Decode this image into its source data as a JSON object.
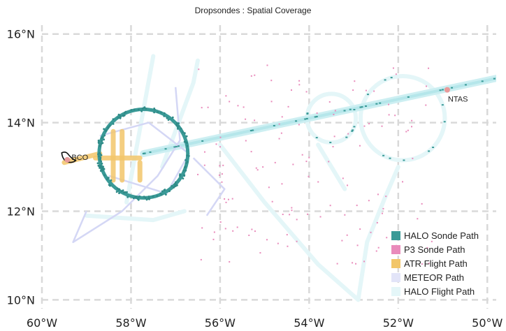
{
  "chart_data": {
    "type": "scatter",
    "title": "Dropsondes : Spatial Coverage",
    "xlim": [
      -60.0,
      -49.8
    ],
    "ylim": [
      9.8,
      16.2
    ],
    "x_ticks": [
      -60,
      -58,
      -56,
      -54,
      -52,
      -50
    ],
    "x_tick_labels": [
      "60°W",
      "58°W",
      "56°W",
      "54°W",
      "52°W",
      "50°W"
    ],
    "y_ticks": [
      10,
      12,
      14,
      16
    ],
    "y_tick_labels": [
      "10°N",
      "12°N",
      "14°N",
      "16°N"
    ],
    "grid": true,
    "legend_placement": "bottom-right",
    "sites": [
      {
        "name": "BCO",
        "lon": -59.43,
        "lat": 13.16,
        "color": "#e89a9a"
      },
      {
        "name": "NTAS",
        "lon": -50.9,
        "lat": 14.74,
        "color": "#e89a9a"
      }
    ],
    "series": [
      {
        "name": "HALO Sonde Path",
        "color": "#3a9a97"
      },
      {
        "name": "P3 Sonde Path",
        "color": "#e98bbb"
      },
      {
        "name": "ATR Flight Path",
        "color": "#f2c66a"
      },
      {
        "name": "METEOR Path",
        "color": "#e2e4f8"
      },
      {
        "name": "HALO Flight Path",
        "color": "#e4f6f8"
      }
    ],
    "halo_circle": {
      "center_lon": -57.72,
      "center_lat": 13.3,
      "radius_deg_lat": 1.0
    },
    "east_circles": [
      {
        "center_lon": -51.9,
        "center_lat": 14.1,
        "radius_deg_lat": 0.95
      },
      {
        "center_lon": -53.5,
        "center_lat": 14.1,
        "radius_deg_lat": 0.55
      }
    ],
    "halo_track": [
      [
        -57.72,
        13.3
      ],
      [
        -49.8,
        15.0
      ]
    ],
    "atr_tracks": [
      [
        [
          -58.4,
          13.8
        ],
        [
          -58.4,
          12.7
        ]
      ],
      [
        [
          -58.2,
          13.8
        ],
        [
          -58.2,
          12.7
        ]
      ],
      [
        [
          -58.8,
          13.2
        ],
        [
          -57.8,
          13.2
        ]
      ],
      [
        [
          -59.5,
          13.1
        ],
        [
          -58.7,
          13.3
        ]
      ],
      [
        [
          -57.8,
          13.1
        ],
        [
          -57.8,
          12.7
        ]
      ]
    ],
    "halo_flight_tracks": [
      [
        [
          -57.5,
          15.5
        ],
        [
          -57.9,
          13.3
        ],
        [
          -58.1,
          12.2
        ]
      ],
      [
        [
          -56.5,
          15.4
        ],
        [
          -56.6,
          14.9
        ],
        [
          -57.3,
          13.0
        ]
      ],
      [
        [
          -56.0,
          13.5
        ],
        [
          -55.0,
          12.2
        ],
        [
          -53.8,
          10.8
        ],
        [
          -52.9,
          10.0
        ]
      ],
      [
        [
          -52.9,
          10.0
        ],
        [
          -52.7,
          11.3
        ],
        [
          -52.3,
          12.3
        ],
        [
          -52.0,
          13.0
        ]
      ],
      [
        [
          -59.0,
          11.9
        ],
        [
          -57.5,
          11.8
        ],
        [
          -56.8,
          12.0
        ]
      ],
      [
        [
          -53.8,
          13.5
        ],
        [
          -53.2,
          12.5
        ]
      ]
    ],
    "meteor_tracks": [
      [
        [
          -57.0,
          14.8
        ],
        [
          -56.9,
          13.6
        ],
        [
          -57.4,
          12.8
        ],
        [
          -58.2,
          12.0
        ],
        [
          -59.3,
          11.3
        ],
        [
          -59.0,
          12.0
        ]
      ],
      [
        [
          -58.7,
          13.7
        ],
        [
          -57.6,
          14.0
        ],
        [
          -56.7,
          13.3
        ],
        [
          -57.2,
          12.4
        ],
        [
          -58.5,
          12.8
        ]
      ],
      [
        [
          -56.6,
          13.2
        ],
        [
          -55.9,
          12.5
        ],
        [
          -56.3,
          11.9
        ]
      ]
    ],
    "p3_sondes": {
      "lon_range": [
        -56.5,
        -51.2
      ],
      "lat_range": [
        10.8,
        15.3
      ],
      "count": 140
    },
    "halo_sondes_track": {
      "lon_range": [
        -57.7,
        -49.9
      ],
      "count": 30
    }
  }
}
